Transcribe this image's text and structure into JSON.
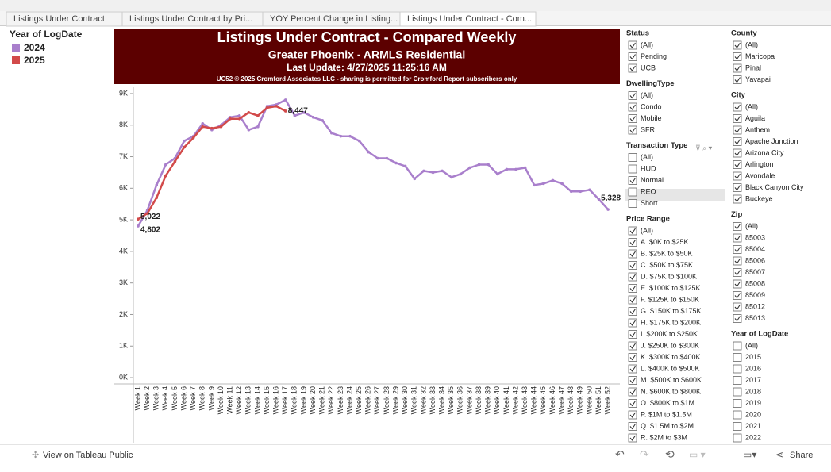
{
  "tabs": [
    "Listings Under Contract",
    "Listings Under Contract by Pri...",
    "YOY Percent Change in Listing...",
    "Listings Under Contract - Com..."
  ],
  "legend_title": "Year of LogDate",
  "chart_data": {
    "type": "line",
    "title": "Listings Under Contract - Compared Weekly",
    "subtitle": "Greater Phoenix - ARMLS Residential",
    "update": "Last Update: 4/27/2025 11:25:16 AM",
    "note": "UC52 © 2025 Cromford Associates LLC - sharing is permitted for Cromford Report subscribers only",
    "categories": [
      "Week 1",
      "Week 2",
      "Week 3",
      "Week 4",
      "Week 5",
      "Week 6",
      "Week 7",
      "Week 8",
      "Week 9",
      "Week 10",
      "Week 11",
      "Week 12",
      "Week 13",
      "Week 14",
      "Week 15",
      "Week 16",
      "Week 17",
      "Week 18",
      "Week 19",
      "Week 20",
      "Week 21",
      "Week 22",
      "Week 23",
      "Week 24",
      "Week 25",
      "Week 26",
      "Week 27",
      "Week 28",
      "Week 29",
      "Week 30",
      "Week 31",
      "Week 32",
      "Week 33",
      "Week 34",
      "Week 35",
      "Week 36",
      "Week 37",
      "Week 38",
      "Week 39",
      "Week 40",
      "Week 41",
      "Week 42",
      "Week 43",
      "Week 44",
      "Week 45",
      "Week 46",
      "Week 47",
      "Week 48",
      "Week 49",
      "Week 50",
      "Week 51",
      "Week 52"
    ],
    "series": [
      {
        "name": "2024",
        "color": "#a97fcc",
        "values": [
          4802,
          5300,
          6100,
          6750,
          6950,
          7500,
          7650,
          8050,
          7850,
          8000,
          8250,
          8300,
          7850,
          7950,
          8600,
          8650,
          8800,
          8300,
          8400,
          8250,
          8150,
          7750,
          7650,
          7650,
          7500,
          7150,
          6950,
          6950,
          6800,
          6700,
          6300,
          6550,
          6500,
          6550,
          6350,
          6450,
          6650,
          6750,
          6750,
          6450,
          6600,
          6600,
          6650,
          6100,
          6150,
          6250,
          6150,
          5900,
          5900,
          5950,
          5650,
          5328
        ],
        "value_labels": [
          "4,802",
          null,
          null,
          null,
          null,
          null,
          null,
          null,
          null,
          null,
          null,
          null,
          null,
          null,
          null,
          null,
          null,
          null,
          null,
          null,
          null,
          null,
          null,
          null,
          null,
          null,
          null,
          null,
          null,
          null,
          null,
          null,
          null,
          null,
          null,
          null,
          null,
          null,
          null,
          null,
          null,
          null,
          null,
          null,
          null,
          null,
          null,
          null,
          null,
          null,
          null,
          "5,328"
        ]
      },
      {
        "name": "2025",
        "color": "#d24a4a",
        "values": [
          5022,
          5200,
          5700,
          6400,
          6850,
          7300,
          7600,
          7950,
          7900,
          7950,
          8200,
          8200,
          8400,
          8300,
          8550,
          8600,
          8447,
          null,
          null,
          null,
          null,
          null,
          null,
          null,
          null,
          null,
          null,
          null,
          null,
          null,
          null,
          null,
          null,
          null,
          null,
          null,
          null,
          null,
          null,
          null,
          null,
          null,
          null,
          null,
          null,
          null,
          null,
          null,
          null,
          null,
          null,
          null
        ],
        "value_labels": [
          "5,022",
          null,
          null,
          null,
          null,
          null,
          null,
          null,
          null,
          null,
          null,
          null,
          null,
          null,
          null,
          null,
          "8,447",
          null,
          null,
          null,
          null,
          null,
          null,
          null,
          null,
          null,
          null,
          null,
          null,
          null,
          null,
          null,
          null,
          null,
          null,
          null,
          null,
          null,
          null,
          null,
          null,
          null,
          null,
          null,
          null,
          null,
          null,
          null,
          null,
          null,
          null,
          null
        ]
      }
    ],
    "ylim": [
      -200,
      9200
    ],
    "yticks": [
      {
        "value": 0,
        "label": "0K"
      },
      {
        "value": 1000,
        "label": "1K"
      },
      {
        "value": 2000,
        "label": "2K"
      },
      {
        "value": 3000,
        "label": "3K"
      },
      {
        "value": 4000,
        "label": "4K"
      },
      {
        "value": 5000,
        "label": "5K"
      },
      {
        "value": 6000,
        "label": "6K"
      },
      {
        "value": 7000,
        "label": "7K"
      },
      {
        "value": 8000,
        "label": "8K"
      },
      {
        "value": 9000,
        "label": "9K"
      }
    ]
  },
  "filters": [
    {
      "title": "Status",
      "col": 0,
      "items": [
        {
          "label": "(All)",
          "checked": true
        },
        {
          "label": "Pending",
          "checked": true
        },
        {
          "label": "UCB",
          "checked": true
        }
      ]
    },
    {
      "title": "DwellingType",
      "col": 0,
      "items": [
        {
          "label": "(All)",
          "checked": true
        },
        {
          "label": "Condo",
          "checked": true
        },
        {
          "label": "Mobile",
          "checked": true
        },
        {
          "label": "SFR",
          "checked": true
        }
      ]
    },
    {
      "title": "Transaction Type",
      "col": 0,
      "items": [
        {
          "label": "(All)",
          "checked": false
        },
        {
          "label": "HUD",
          "checked": false
        },
        {
          "label": "Normal",
          "checked": true
        },
        {
          "label": "REO",
          "checked": false
        },
        {
          "label": "Short",
          "checked": false
        }
      ]
    },
    {
      "title": "Price Range",
      "col": 0,
      "items": [
        {
          "label": "(All)",
          "checked": true
        },
        {
          "label": "A. $0K to $25K",
          "checked": true
        },
        {
          "label": "B. $25K to $50K",
          "checked": true
        },
        {
          "label": "C. $50K to $75K",
          "checked": true
        },
        {
          "label": "D. $75K to $100K",
          "checked": true
        },
        {
          "label": "E. $100K to $125K",
          "checked": true
        },
        {
          "label": "F. $125K to $150K",
          "checked": true
        },
        {
          "label": "G. $150K to $175K",
          "checked": true
        },
        {
          "label": "H. $175K to $200K",
          "checked": true
        },
        {
          "label": "I. $200K to $250K",
          "checked": true
        },
        {
          "label": "J. $250K to $300K",
          "checked": true
        },
        {
          "label": "K. $300K to $400K",
          "checked": true
        },
        {
          "label": "L. $400K to $500K",
          "checked": true
        },
        {
          "label": "M. $500K to $600K",
          "checked": true
        },
        {
          "label": "N. $600K to $800K",
          "checked": true
        },
        {
          "label": "O. $800K to $1M",
          "checked": true
        },
        {
          "label": "P. $1M to $1.5M",
          "checked": true
        },
        {
          "label": "Q. $1.5M to $2M",
          "checked": true
        },
        {
          "label": "R. $2M to $3M",
          "checked": true
        }
      ]
    },
    {
      "title": "County",
      "col": 1,
      "items": [
        {
          "label": "(All)",
          "checked": true
        },
        {
          "label": "Maricopa",
          "checked": true
        },
        {
          "label": "Pinal",
          "checked": true
        },
        {
          "label": "Yavapai",
          "checked": true
        }
      ]
    },
    {
      "title": "City",
      "col": 1,
      "items": [
        {
          "label": "(All)",
          "checked": true
        },
        {
          "label": "Aguila",
          "checked": true
        },
        {
          "label": "Anthem",
          "checked": true
        },
        {
          "label": "Apache Junction",
          "checked": true
        },
        {
          "label": "Arizona City",
          "checked": true
        },
        {
          "label": "Arlington",
          "checked": true
        },
        {
          "label": "Avondale",
          "checked": true
        },
        {
          "label": "Black Canyon City",
          "checked": true
        },
        {
          "label": "Buckeye",
          "checked": true
        }
      ]
    },
    {
      "title": "Zip",
      "col": 1,
      "items": [
        {
          "label": "(All)",
          "checked": true
        },
        {
          "label": "85003",
          "checked": true
        },
        {
          "label": "85004",
          "checked": true
        },
        {
          "label": "85006",
          "checked": true
        },
        {
          "label": "85007",
          "checked": true
        },
        {
          "label": "85008",
          "checked": true
        },
        {
          "label": "85009",
          "checked": true
        },
        {
          "label": "85012",
          "checked": true
        },
        {
          "label": "85013",
          "checked": true
        }
      ]
    },
    {
      "title": "Year of LogDate",
      "col": 1,
      "items": [
        {
          "label": "(All)",
          "checked": false
        },
        {
          "label": "2015",
          "checked": false
        },
        {
          "label": "2016",
          "checked": false
        },
        {
          "label": "2017",
          "checked": false
        },
        {
          "label": "2018",
          "checked": false
        },
        {
          "label": "2019",
          "checked": false
        },
        {
          "label": "2020",
          "checked": false
        },
        {
          "label": "2021",
          "checked": false
        },
        {
          "label": "2022",
          "checked": false
        }
      ]
    }
  ],
  "footer": {
    "link": "View on Tableau Public",
    "share": "Share"
  }
}
